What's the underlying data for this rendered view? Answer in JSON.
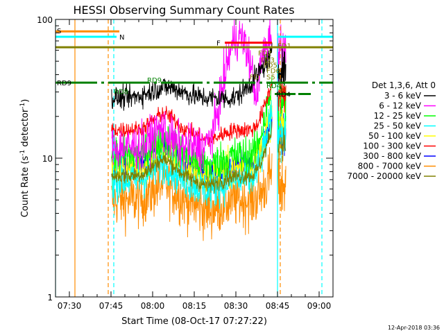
{
  "chart_data": {
    "type": "line",
    "title": "HESSI Observing Summary Count Rates",
    "xlabel": "Start Time (08-Oct-17 07:27:22)",
    "ylabel_main": "Count Rate (s",
    "ylabel_sup1": "-1",
    "ylabel_mid": " detector",
    "ylabel_sup2": "-1",
    "ylabel_end": ")",
    "xlim": [
      "07:25",
      "09:05"
    ],
    "ylim": [
      1,
      100
    ],
    "yscale": "log",
    "x_ticks": [
      "07:30",
      "07:45",
      "08:00",
      "08:15",
      "08:30",
      "08:45",
      "09:00"
    ],
    "y_ticks": [
      "1",
      "10",
      "100"
    ],
    "legend": {
      "header": "Det 1,3,6, Att 0",
      "position": "right"
    },
    "series": [
      {
        "name": "3 - 6 keV",
        "color": "#000000",
        "level": 27,
        "peak": 55,
        "noise": 0.08
      },
      {
        "name": "6 - 12 keV",
        "color": "#ff00ff",
        "level": 12,
        "peak": 75,
        "noise": 0.16
      },
      {
        "name": "12 - 25 keV",
        "color": "#00ff00",
        "level": 10.5,
        "peak": 32,
        "noise": 0.14
      },
      {
        "name": "25 - 50 keV",
        "color": "#00ffff",
        "level": 7,
        "peak": 20,
        "noise": 0.14
      },
      {
        "name": "50 - 100 keV",
        "color": "#ffff00",
        "level": 8.5,
        "peak": 22,
        "noise": 0.14
      },
      {
        "name": "100 - 300 keV",
        "color": "#ff0000",
        "level": 16,
        "peak": 35,
        "noise": 0.06
      },
      {
        "name": "300 - 800 keV",
        "color": "#0000ff",
        "level": 9,
        "peak": 20,
        "noise": 0.1
      },
      {
        "name": "800 - 7000 keV",
        "color": "#ff8c00",
        "level": 5,
        "peak": 8,
        "noise": 0.2
      },
      {
        "name": "7000 - 20000 keV",
        "color": "#808000",
        "level": 7.5,
        "peak": 16,
        "noise": 0.06
      }
    ],
    "flag_bars": [
      {
        "label": "S",
        "color": "#ff8c00",
        "x_start": "07:25",
        "x_end": "07:48",
        "y": 82
      },
      {
        "label": "N",
        "color": "#00ffff",
        "x_start": "07:25",
        "x_end": "07:47",
        "y": 75
      },
      {
        "label": "",
        "color": "#00ffff",
        "x_start": "08:45",
        "x_end": "09:05",
        "y": 75
      },
      {
        "label": "F",
        "color": "#ff0000",
        "x_start": "08:26",
        "x_end": "08:43",
        "y": 68
      },
      {
        "label": "FD1",
        "color": "#808000",
        "x_start": "07:25",
        "x_end": "09:05",
        "y": 63
      },
      {
        "label": "RD9",
        "color": "#008000",
        "x_start": "07:25",
        "x_end": "09:05",
        "y": 35
      },
      {
        "label": "RD4",
        "color": "#008000",
        "x_start": "08:44",
        "x_end": "08:57",
        "y": 29
      }
    ],
    "annotations": [
      {
        "text": "FD1",
        "color": "#808000",
        "x": "08:45",
        "y": 62
      },
      {
        "text": "FD2",
        "color": "#808000",
        "x": "08:38",
        "y": 55
      },
      {
        "text": "FD3",
        "color": "#808000",
        "x": "08:39",
        "y": 49
      },
      {
        "text": "FD5",
        "color": "#808000",
        "x": "08:40",
        "y": 45
      },
      {
        "text": "FD6",
        "color": "#808000",
        "x": "08:41",
        "y": 41
      },
      {
        "text": "FD",
        "color": "#808000",
        "x": "08:35",
        "y": 37
      },
      {
        "text": "S5",
        "color": "#808000",
        "x": "08:41",
        "y": 37
      },
      {
        "text": "RD9",
        "color": "#008000",
        "x": "07:58",
        "y": 35
      },
      {
        "text": "RD8",
        "color": "#008000",
        "x": "07:46",
        "y": 29
      },
      {
        "text": "RD4",
        "color": "#008000",
        "x": "08:41",
        "y": 32
      }
    ],
    "vlines": [
      {
        "x": "07:25",
        "color": "#00ffff",
        "style": "solid"
      },
      {
        "x": "07:32",
        "color": "#ff8c00",
        "style": "solid"
      },
      {
        "x": "07:44",
        "color": "#ff8c00",
        "style": "dashed"
      },
      {
        "x": "07:46",
        "color": "#00ffff",
        "style": "dashed"
      },
      {
        "x": "08:45",
        "color": "#00ffff",
        "style": "solid"
      },
      {
        "x": "08:46",
        "color": "#ff8c00",
        "style": "dashed"
      },
      {
        "x": "09:01",
        "color": "#00ffff",
        "style": "dashed"
      }
    ],
    "data_span": [
      "07:45",
      "08:43"
    ],
    "post_span": [
      "08:45",
      "08:48"
    ]
  },
  "timestamp": "12-Apr-2018 03:36"
}
